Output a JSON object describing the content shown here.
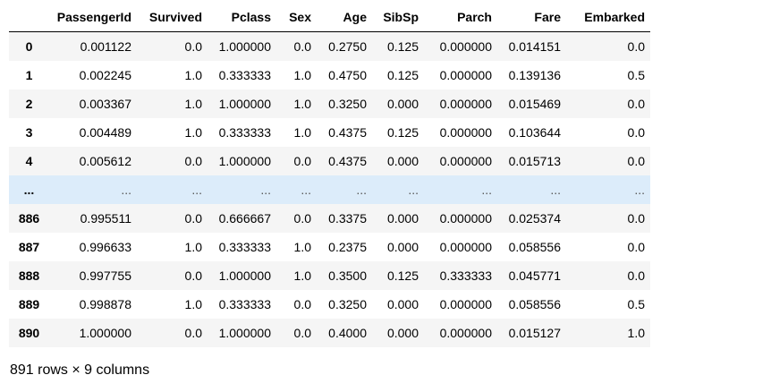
{
  "table": {
    "index_header": "",
    "columns": [
      "PassengerId",
      "Survived",
      "Pclass",
      "Sex",
      "Age",
      "SibSp",
      "Parch",
      "Fare",
      "Embarked"
    ],
    "rows": [
      {
        "index": "0",
        "cells": [
          "0.001122",
          "0.0",
          "1.000000",
          "0.0",
          "0.2750",
          "0.125",
          "0.000000",
          "0.014151",
          "0.0"
        ]
      },
      {
        "index": "1",
        "cells": [
          "0.002245",
          "1.0",
          "0.333333",
          "1.0",
          "0.4750",
          "0.125",
          "0.000000",
          "0.139136",
          "0.5"
        ]
      },
      {
        "index": "2",
        "cells": [
          "0.003367",
          "1.0",
          "1.000000",
          "1.0",
          "0.3250",
          "0.000",
          "0.000000",
          "0.015469",
          "0.0"
        ]
      },
      {
        "index": "3",
        "cells": [
          "0.004489",
          "1.0",
          "0.333333",
          "1.0",
          "0.4375",
          "0.125",
          "0.000000",
          "0.103644",
          "0.0"
        ]
      },
      {
        "index": "4",
        "cells": [
          "0.005612",
          "0.0",
          "1.000000",
          "0.0",
          "0.4375",
          "0.000",
          "0.000000",
          "0.015713",
          "0.0"
        ]
      },
      {
        "index": "...",
        "cells": [
          "...",
          "...",
          "...",
          "...",
          "...",
          "...",
          "...",
          "...",
          "..."
        ]
      },
      {
        "index": "886",
        "cells": [
          "0.995511",
          "0.0",
          "0.666667",
          "0.0",
          "0.3375",
          "0.000",
          "0.000000",
          "0.025374",
          "0.0"
        ]
      },
      {
        "index": "887",
        "cells": [
          "0.996633",
          "1.0",
          "0.333333",
          "1.0",
          "0.2375",
          "0.000",
          "0.000000",
          "0.058556",
          "0.0"
        ]
      },
      {
        "index": "888",
        "cells": [
          "0.997755",
          "0.0",
          "1.000000",
          "1.0",
          "0.3500",
          "0.125",
          "0.333333",
          "0.045771",
          "0.0"
        ]
      },
      {
        "index": "889",
        "cells": [
          "0.998878",
          "1.0",
          "0.333333",
          "0.0",
          "0.3250",
          "0.000",
          "0.000000",
          "0.058556",
          "0.5"
        ]
      },
      {
        "index": "890",
        "cells": [
          "1.000000",
          "0.0",
          "1.000000",
          "0.0",
          "0.4000",
          "0.000",
          "0.000000",
          "0.015127",
          "1.0"
        ]
      }
    ]
  },
  "shape_note": "891 rows × 9 columns",
  "colors": {
    "row_stripe": "#f5f5f5",
    "row_hover": "#dcecfa",
    "header_border": "#000000"
  }
}
